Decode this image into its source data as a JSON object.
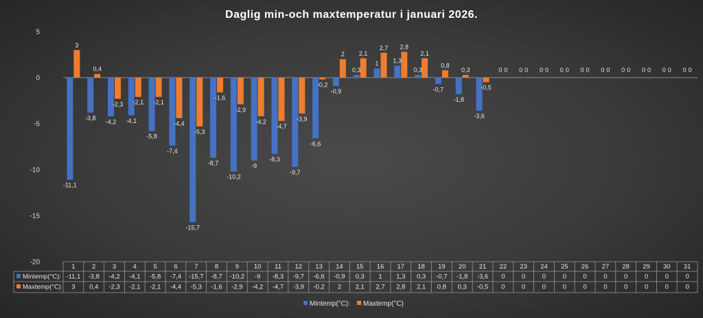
{
  "chart_data": {
    "type": "bar",
    "title": "Daglig min-och maxtemperatur i januari 2026.",
    "categories": [
      "1",
      "2",
      "3",
      "4",
      "5",
      "6",
      "7",
      "8",
      "9",
      "10",
      "11",
      "12",
      "13",
      "14",
      "15",
      "16",
      "17",
      "18",
      "19",
      "20",
      "21",
      "22",
      "23",
      "24",
      "25",
      "26",
      "27",
      "28",
      "29",
      "30",
      "31"
    ],
    "series": [
      {
        "name": "Mintemp(°C):",
        "color": "#4472C4",
        "values": [
          -11.1,
          -3.8,
          -4.2,
          -4.1,
          -5.8,
          -7.4,
          -15.7,
          -8.7,
          -10.2,
          -9,
          -8.3,
          -9.7,
          -6.6,
          -0.9,
          0.3,
          1,
          1.3,
          0.3,
          -0.7,
          -1.8,
          -3.6,
          0,
          0,
          0,
          0,
          0,
          0,
          0,
          0,
          0,
          0
        ],
        "labels": [
          "-11,1",
          "-3,8",
          "-4,2",
          "-4,1",
          "-5,8",
          "-7,4",
          "-15,7",
          "-8,7",
          "-10,2",
          "-9",
          "-8,3",
          "-9,7",
          "-6,6",
          "-0,9",
          "0,3",
          "1",
          "1,3",
          "0,3",
          "-0,7",
          "-1,8",
          "-3,6",
          "0",
          "0",
          "0",
          "0",
          "0",
          "0",
          "0",
          "0",
          "0",
          "0"
        ]
      },
      {
        "name": "Maxtemp(°C)",
        "color": "#ED7D31",
        "values": [
          3,
          0.4,
          -2.3,
          -2.1,
          -2.1,
          -4.4,
          -5.3,
          -1.6,
          -2.9,
          -4.2,
          -4.7,
          -3.9,
          -0.2,
          2,
          2.1,
          2.7,
          2.8,
          2.1,
          0.8,
          0.3,
          -0.5,
          0,
          0,
          0,
          0,
          0,
          0,
          0,
          0,
          0,
          0
        ],
        "labels": [
          "3",
          "0,4",
          "-2,3",
          "-2,1",
          "-2,1",
          "-4,4",
          "-5,3",
          "-1,6",
          "-2,9",
          "-4,2",
          "-4,7",
          "-3,9",
          "-0,2",
          "2",
          "2,1",
          "2,7",
          "2,8",
          "2,1",
          "0,8",
          "0,3",
          "-0,5",
          "0",
          "0",
          "0",
          "0",
          "0",
          "0",
          "0",
          "0",
          "0",
          "0"
        ]
      }
    ],
    "ylim": [
      -20,
      5
    ],
    "yticks": [
      5,
      0,
      -5,
      -10,
      -15,
      -20
    ],
    "legend": "bottom",
    "data_table": true
  }
}
